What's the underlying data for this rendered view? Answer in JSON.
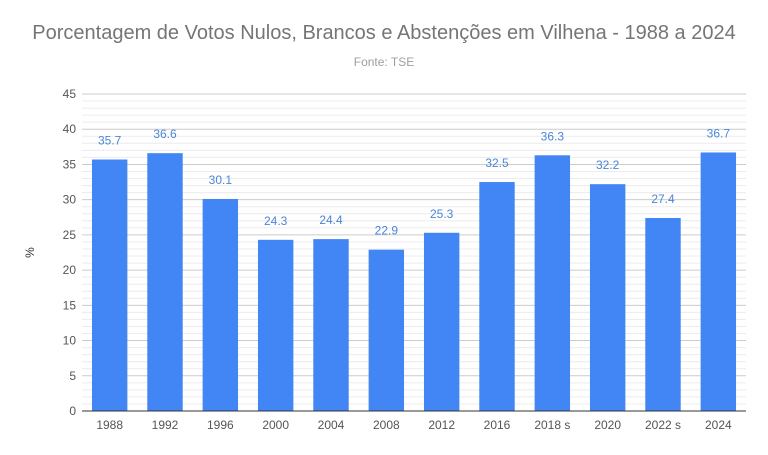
{
  "chart_data": {
    "type": "bar",
    "title": "Porcentagem de Votos Nulos, Brancos e Abstenções em Vilhena - 1988 a 2024",
    "subtitle": "Fonte: TSE",
    "ylabel": "%",
    "xlabel": "",
    "ylim": [
      0,
      45
    ],
    "yticks": [
      0,
      5,
      10,
      15,
      20,
      25,
      30,
      35,
      40,
      45
    ],
    "grid": true,
    "bar_color": "#4285f4",
    "categories": [
      "1988",
      "1992",
      "1996",
      "2000",
      "2004",
      "2008",
      "2012",
      "2016",
      "2018 s",
      "2020",
      "2022 s",
      "2024"
    ],
    "values": [
      35.7,
      36.6,
      30.1,
      24.3,
      24.4,
      22.9,
      25.3,
      32.5,
      36.3,
      32.2,
      27.4,
      36.7
    ],
    "data_labels": [
      "35.7",
      "36.6",
      "30.1",
      "24.3",
      "24.4",
      "22.9",
      "25.3",
      "32.5",
      "36.3",
      "32.2",
      "27.4",
      "36.7"
    ]
  }
}
